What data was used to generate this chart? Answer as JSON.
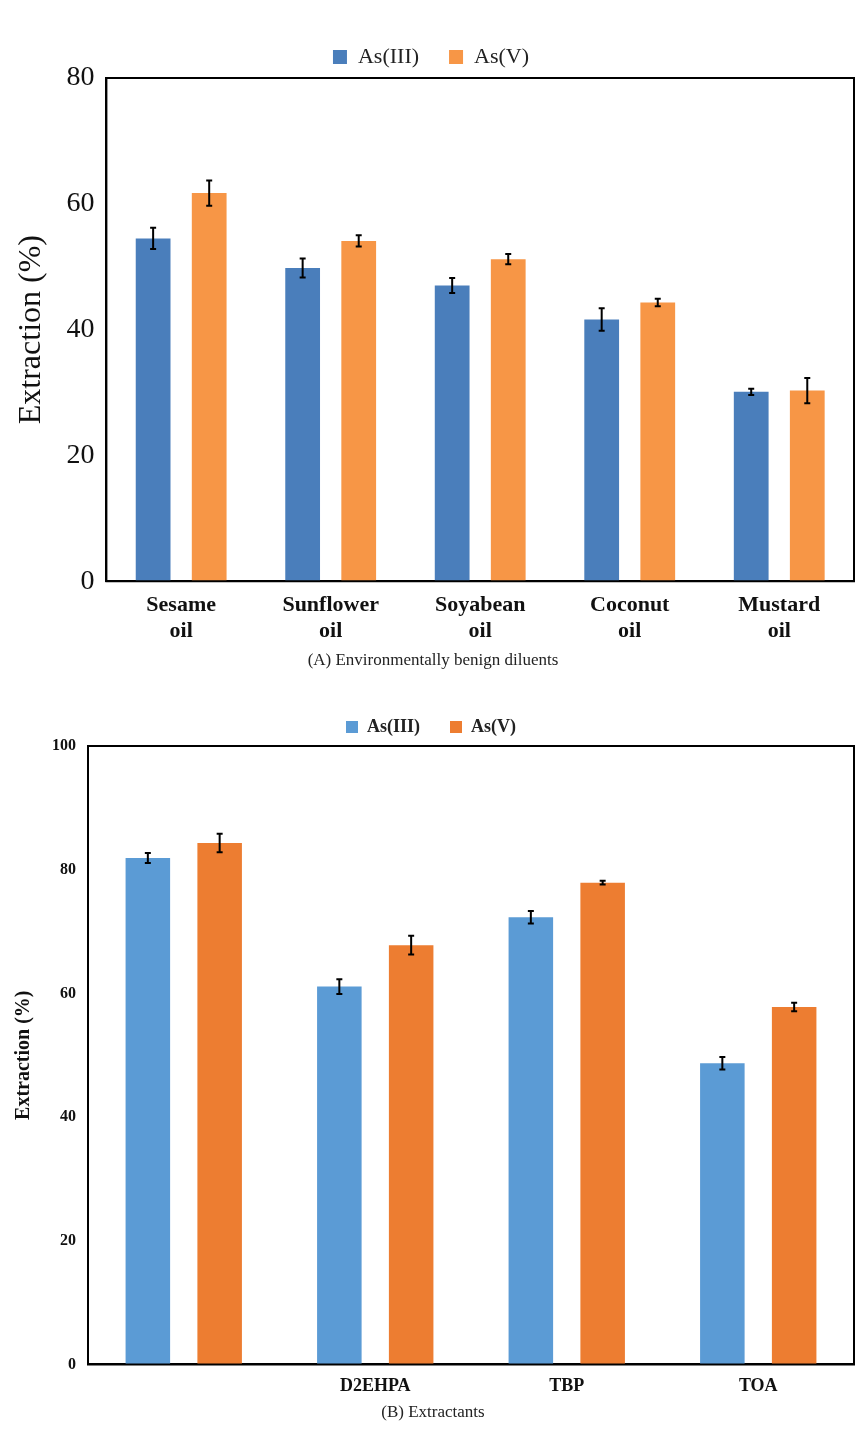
{
  "chart_data": [
    {
      "type": "bar",
      "ylabel": "Extraction (%)",
      "categories": [
        "Sesame oil",
        "Sunflower oil",
        "Soyabean oil",
        "Coconut oil",
        "Mustard oil"
      ],
      "series": [
        {
          "name": "As(III)",
          "color": "#4a7ebb",
          "values": [
            54.5,
            49.8,
            47.0,
            41.6,
            30.1
          ],
          "errors": [
            1.7,
            1.5,
            1.2,
            1.8,
            0.5
          ]
        },
        {
          "name": "As(V)",
          "color": "#f79646",
          "values": [
            61.7,
            54.1,
            51.2,
            44.3,
            30.3
          ],
          "errors": [
            2,
            0.9,
            0.8,
            0.6,
            2
          ]
        }
      ],
      "ylim": [
        0,
        80
      ],
      "yticks": [
        0,
        20,
        40,
        60,
        80
      ],
      "legend": "top",
      "annotations": [
        "(A) Environmentally benign diluents"
      ]
    },
    {
      "type": "bar",
      "ylabel": "Extraction (%)",
      "categories": [
        null,
        "D2EHPA",
        "TBP",
        "TOA"
      ],
      "series": [
        {
          "name": "As(III)",
          "color": "#5b9bd5",
          "values": [
            81.9,
            61.1,
            72.3,
            48.7
          ],
          "errors": [
            0.8,
            1.2,
            1,
            1
          ]
        },
        {
          "name": "As(V)",
          "color": "#ed7d31",
          "values": [
            84.3,
            67.8,
            77.9,
            57.8
          ],
          "errors": [
            1.5,
            1.5,
            0.3,
            0.7
          ]
        }
      ],
      "ylim": [
        0,
        100
      ],
      "yticks": [
        0,
        20,
        40,
        60,
        80,
        100
      ],
      "legend": "top",
      "annotations": [
        "(B) Extractants"
      ]
    }
  ]
}
